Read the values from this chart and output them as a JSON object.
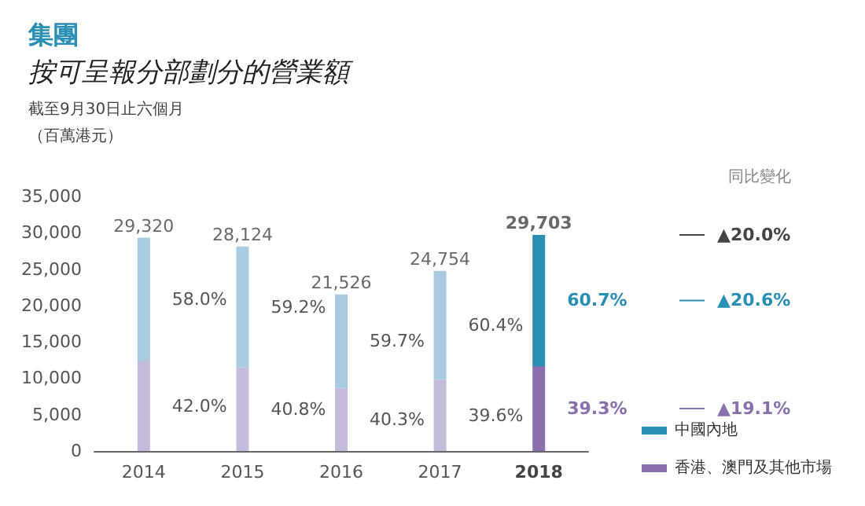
{
  "chart_data": {
    "type": "bar",
    "title": "集團",
    "subtitle": "按可呈報分部劃分的營業額",
    "annotations": [
      "截至9月30日止六個月",
      "（百萬港元）",
      "同比變化",
      "▲20.0%",
      "▲20.6%",
      "▲19.1%",
      {
        "text": "42.0%",
        "x": "2014",
        "y": 6157
      },
      {
        "text": "40.8%",
        "x": "2015",
        "y": 5738
      },
      {
        "text": "40.3%",
        "x": "2016",
        "y": 4338
      },
      {
        "text": "39.6%",
        "x": "2017",
        "y": 4902
      },
      {
        "text": "39.3%",
        "x": "2018",
        "y": 5837
      },
      {
        "text": "58.0%",
        "x": "2014",
        "y": 20817
      },
      {
        "text": "59.2%",
        "x": "2015",
        "y": 19800
      },
      {
        "text": "59.7%",
        "x": "2016",
        "y": 15101
      },
      {
        "text": "60.4%",
        "x": "2017",
        "y": 17279
      },
      {
        "text": "60.7%",
        "x": "2018",
        "y": 20688
      }
    ],
    "categories": [
      "2014",
      "2015",
      "2016",
      "2017",
      "2018"
    ],
    "stacked": true,
    "series": [
      {
        "name": "香港、澳門及其他市場",
        "color": "#8a6fad",
        "colors": [
          "#c6bcda",
          "#c6bcda",
          "#c6bcda",
          "#c6bcda",
          "#8a6fad"
        ],
        "values": [
          12314,
          11475,
          8675,
          9803,
          11673
        ]
      },
      {
        "name": "中國內地",
        "color": "#2a8fb4",
        "colors": [
          "#a9cbe0",
          "#a9cbe0",
          "#a9cbe0",
          "#a9cbe0",
          "#2a8fb4"
        ],
        "values": [
          17006,
          16649,
          12851,
          14951,
          18030
        ]
      }
    ],
    "totals": [
      "29,320",
      "28,124",
      "21,526",
      "24,754",
      "29,703"
    ],
    "ylim": [
      0,
      35000
    ],
    "yticks": [
      0,
      {
        "value": 5000,
        "label": "5,000"
      },
      {
        "value": 10000,
        "label": "10,000"
      },
      {
        "value": 15000,
        "label": "15,000"
      },
      {
        "value": 20000,
        "label": "20,000"
      },
      {
        "value": 25000,
        "label": "25,000"
      },
      {
        "value": 30000,
        "label": "30,000"
      },
      {
        "value": 35000,
        "label": "35,000"
      }
    ],
    "grid": false,
    "legend": "bottom right"
  }
}
